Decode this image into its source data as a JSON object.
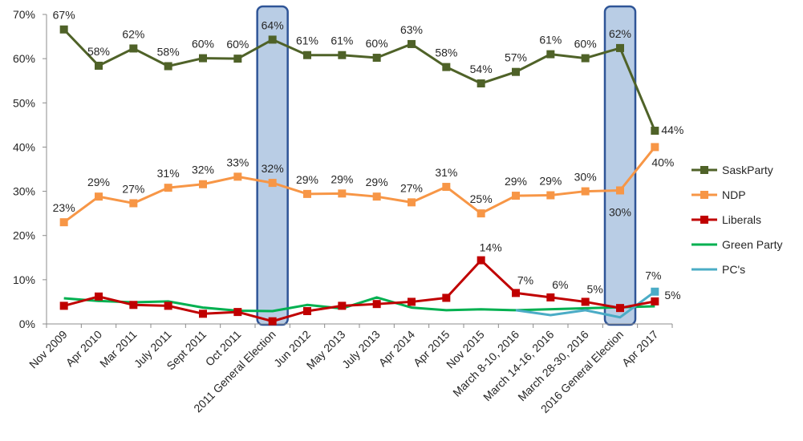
{
  "chart_data": {
    "type": "line",
    "title": "",
    "xlabel": "",
    "ylabel": "",
    "ylim": [
      0,
      70
    ],
    "y_ticks": [
      "0%",
      "10%",
      "20%",
      "30%",
      "40%",
      "50%",
      "60%",
      "70%"
    ],
    "grid": false,
    "legend_position": "right",
    "categories": [
      "Nov 2009",
      "Apr 2010",
      "Mar 2011",
      "July 2011",
      "Sept 2011",
      "Oct 2011",
      "2011 General Election",
      "Jun 2012",
      "May 2013",
      "July 2013",
      "Apr 2014",
      "Apr 2015",
      "Nov 2015",
      "March 8-10, 2016",
      "March 14-16, 2016",
      "March 28-30, 2016",
      "2016 General Election",
      "Apr 2017"
    ],
    "highlighted_categories": [
      "2011 General Election",
      "2016 General Election"
    ],
    "series": [
      {
        "name": "SaskParty",
        "color": "#4f6228",
        "marker": "square",
        "values": [
          66.6,
          58.4,
          62.3,
          58.3,
          60.1,
          60,
          64.3,
          60.8,
          60.8,
          60.2,
          63.3,
          58.1,
          54.4,
          57,
          61,
          60.1,
          62.4,
          43.7
        ],
        "labels": [
          "67%",
          "58%",
          "62%",
          "58%",
          "60%",
          "60%",
          "64%",
          "61%",
          "61%",
          "60%",
          "63%",
          "58%",
          "54%",
          "57%",
          "61%",
          "60%",
          "62%",
          "44%"
        ]
      },
      {
        "name": "NDP",
        "color": "#f79646",
        "marker": "square",
        "values": [
          23,
          28.8,
          27.3,
          30.8,
          31.6,
          33.3,
          31.9,
          29.4,
          29.5,
          28.8,
          27.5,
          31,
          25,
          29,
          29.1,
          30,
          30.2,
          40
        ],
        "labels": [
          "23%",
          "29%",
          "27%",
          "31%",
          "32%",
          "33%",
          "32%",
          "29%",
          "29%",
          "29%",
          "27%",
          "31%",
          "25%",
          "29%",
          "29%",
          "30%",
          "30%",
          "40%"
        ]
      },
      {
        "name": "Liberals",
        "color": "#c00000",
        "marker": "square",
        "values": [
          4.1,
          6.2,
          4.3,
          4.1,
          2.3,
          2.7,
          0.6,
          2.9,
          4.1,
          4.5,
          5,
          5.9,
          14.4,
          7,
          6,
          5,
          3.6,
          5.1
        ],
        "labels": [
          null,
          null,
          null,
          null,
          null,
          null,
          null,
          null,
          null,
          null,
          null,
          null,
          "14%",
          "7%",
          "6%",
          "5%",
          null,
          "5%"
        ]
      },
      {
        "name": "Green Party",
        "color": "#00b050",
        "marker": "none",
        "values": [
          5.8,
          5.2,
          4.9,
          5.1,
          3.7,
          3,
          2.9,
          4.3,
          3.5,
          6,
          3.7,
          3.1,
          3.3,
          3.1,
          null,
          null,
          null,
          4
        ],
        "labels": [
          null,
          null,
          null,
          null,
          null,
          null,
          null,
          null,
          null,
          null,
          null,
          null,
          null,
          null,
          null,
          null,
          null,
          null
        ]
      },
      {
        "name": "PC's",
        "color": "#4bacc6",
        "marker": "end",
        "values": [
          null,
          null,
          null,
          null,
          null,
          null,
          null,
          null,
          null,
          null,
          null,
          null,
          null,
          3.1,
          2,
          3.1,
          1.5,
          7.3
        ],
        "labels": [
          null,
          null,
          null,
          null,
          null,
          null,
          null,
          null,
          null,
          null,
          null,
          null,
          null,
          null,
          null,
          null,
          null,
          "7%"
        ]
      }
    ]
  }
}
